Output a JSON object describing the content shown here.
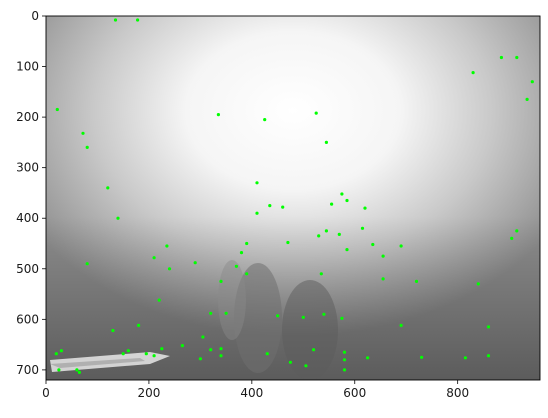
{
  "chart_data": {
    "type": "scatter",
    "title": "",
    "xlabel": "",
    "ylabel": "",
    "xlim": [
      0,
      960
    ],
    "ylim": [
      720,
      0
    ],
    "y_inverted": true,
    "grid": false,
    "background": "grayscale underwater camera image with bright haze in the upper center",
    "point_color": "#00ff00",
    "x_ticks": [
      0,
      200,
      400,
      600,
      800
    ],
    "y_ticks": [
      0,
      100,
      200,
      300,
      400,
      500,
      600,
      700
    ],
    "series": [
      {
        "points": [
          [
            135,
            8
          ],
          [
            178,
            8
          ],
          [
            22,
            185
          ],
          [
            72,
            232
          ],
          [
            80,
            260
          ],
          [
            120,
            340
          ],
          [
            140,
            400
          ],
          [
            335,
            195
          ],
          [
            425,
            205
          ],
          [
            525,
            192
          ],
          [
            545,
            250
          ],
          [
            410,
            330
          ],
          [
            435,
            375
          ],
          [
            460,
            378
          ],
          [
            410,
            390
          ],
          [
            555,
            372
          ],
          [
            575,
            352
          ],
          [
            585,
            365
          ],
          [
            620,
            380
          ],
          [
            615,
            420
          ],
          [
            530,
            435
          ],
          [
            545,
            425
          ],
          [
            570,
            432
          ],
          [
            585,
            462
          ],
          [
            635,
            452
          ],
          [
            655,
            475
          ],
          [
            690,
            455
          ],
          [
            830,
            112
          ],
          [
            885,
            82
          ],
          [
            915,
            82
          ],
          [
            945,
            130
          ],
          [
            935,
            165
          ],
          [
            905,
            440
          ],
          [
            915,
            425
          ],
          [
            210,
            478
          ],
          [
            235,
            455
          ],
          [
            240,
            500
          ],
          [
            80,
            490
          ],
          [
            390,
            450
          ],
          [
            380,
            468
          ],
          [
            370,
            495
          ],
          [
            390,
            510
          ],
          [
            340,
            525
          ],
          [
            290,
            488
          ],
          [
            220,
            562
          ],
          [
            535,
            510
          ],
          [
            470,
            448
          ],
          [
            655,
            520
          ],
          [
            720,
            525
          ],
          [
            840,
            530
          ],
          [
            320,
            588
          ],
          [
            350,
            588
          ],
          [
            450,
            593
          ],
          [
            500,
            596
          ],
          [
            540,
            590
          ],
          [
            575,
            598
          ],
          [
            130,
            622
          ],
          [
            180,
            612
          ],
          [
            690,
            612
          ],
          [
            860,
            615
          ],
          [
            320,
            660
          ],
          [
            340,
            658
          ],
          [
            340,
            672
          ],
          [
            300,
            678
          ],
          [
            305,
            635
          ],
          [
            150,
            668
          ],
          [
            160,
            662
          ],
          [
            225,
            658
          ],
          [
            265,
            652
          ],
          [
            210,
            672
          ],
          [
            195,
            668
          ],
          [
            520,
            660
          ],
          [
            430,
            668
          ],
          [
            475,
            685
          ],
          [
            505,
            692
          ],
          [
            580,
            665
          ],
          [
            580,
            680
          ],
          [
            580,
            700
          ],
          [
            625,
            676
          ],
          [
            730,
            675
          ],
          [
            815,
            676
          ],
          [
            860,
            672
          ],
          [
            20,
            668
          ],
          [
            30,
            662
          ],
          [
            25,
            700
          ],
          [
            60,
            700
          ],
          [
            65,
            705
          ]
        ]
      }
    ]
  }
}
